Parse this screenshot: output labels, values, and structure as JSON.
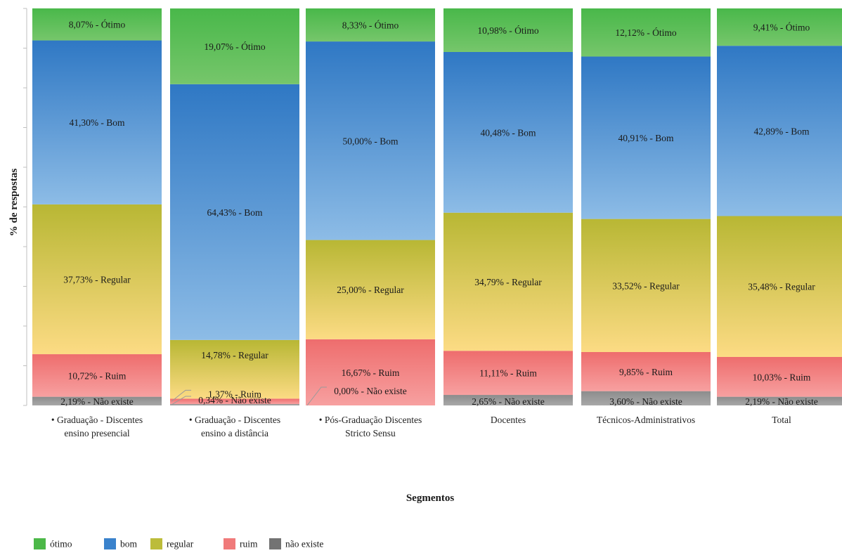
{
  "chart_data": {
    "type": "bar",
    "stacked": true,
    "percent_stacked": true,
    "title": "",
    "xlabel": "Segmentos",
    "ylabel": "% de respostas",
    "ylim": [
      0,
      100
    ],
    "grid": false,
    "legend_position": "bottom-left",
    "categories": [
      [
        "• Graduação - Discentes",
        "ensino presencial"
      ],
      [
        "• Graduação - Discentes",
        "ensino a distância"
      ],
      [
        "• Pós-Graduação Discentes",
        "Stricto Sensu"
      ],
      [
        "Docentes"
      ],
      [
        "Técnicos-Administrativos"
      ],
      [
        "Total"
      ]
    ],
    "series": [
      {
        "key": "nao_existe",
        "name": "não existe",
        "suffix": "Não existe",
        "color_top": "#8c8c8c",
        "color_bottom": "#a8a8a8",
        "legend_color": "#737373",
        "values": [
          2.19,
          0.34,
          0.0,
          2.65,
          3.6,
          2.19
        ],
        "labels": [
          "2,19%",
          "0,34%",
          "0,00%",
          "2,65%",
          "3,60%",
          "2,19%"
        ]
      },
      {
        "key": "ruim",
        "name": "ruim",
        "suffix": "Ruim",
        "color_top": "#ee6d6d",
        "color_bottom": "#f7a0a0",
        "legend_color": "#f07a7a",
        "values": [
          10.72,
          1.37,
          16.67,
          11.11,
          9.85,
          10.03
        ],
        "labels": [
          "10,72%",
          "1,37%",
          "16,67%",
          "11,11%",
          "9,85%",
          "10,03%"
        ]
      },
      {
        "key": "regular",
        "name": "regular",
        "suffix": "Regular",
        "color_top": "#b8b734",
        "color_bottom": "#fcdb84",
        "legend_color": "#bcbc3a",
        "values": [
          37.73,
          14.78,
          25.0,
          34.79,
          33.52,
          35.48
        ],
        "labels": [
          "37,73%",
          "14,78%",
          "25,00%",
          "34,79%",
          "33,52%",
          "35,48%"
        ]
      },
      {
        "key": "bom",
        "name": "bom",
        "suffix": "Bom",
        "color_top": "#2f78c4",
        "color_bottom": "#8dbce6",
        "legend_color": "#3a82cc",
        "values": [
          41.3,
          64.43,
          50.0,
          40.48,
          40.91,
          42.89
        ],
        "labels": [
          "41,30%",
          "64,43%",
          "50,00%",
          "40,48%",
          "40,91%",
          "42,89%"
        ]
      },
      {
        "key": "otimo",
        "name": "ótimo",
        "suffix": "Ótimo",
        "color_top": "#49b84a",
        "color_bottom": "#76c66b",
        "legend_color": "#4cb848",
        "values": [
          8.07,
          19.07,
          8.33,
          10.98,
          12.12,
          9.41
        ],
        "labels": [
          "8,07%",
          "19,07%",
          "8,33%",
          "10,98%",
          "12,12%",
          "9,41%"
        ]
      }
    ]
  }
}
